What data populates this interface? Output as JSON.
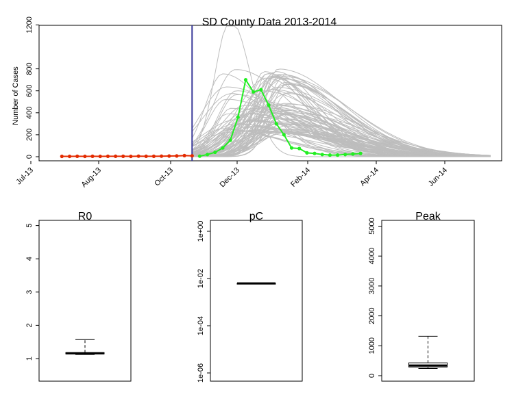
{
  "chart_data": [
    {
      "type": "line",
      "title": "SD County Data 2013-2014",
      "ylabel": "Number of Cases",
      "xlabel": "",
      "x_tick_labels": [
        "Jul-13",
        "Aug-13",
        "Oct-13",
        "Dec-13",
        "Feb-14",
        "Apr-14",
        "Jun-14"
      ],
      "y_ticks": [
        0,
        200,
        400,
        600,
        800,
        1200
      ],
      "ylim": [
        0,
        1250
      ],
      "grid": false,
      "week_index_range": [
        0,
        58
      ],
      "vertical_line_week": 19,
      "colors": {
        "observed_fit": "#e32b00",
        "observed_forecast": "#22ee22",
        "simulations": "#bdbdbd",
        "cutoff_line": "#3a3a9a"
      },
      "series": [
        {
          "values_week_start": 2,
          "values": [
            3,
            3,
            4,
            3,
            4,
            3,
            4,
            4,
            4,
            3,
            5,
            4,
            4,
            5,
            6,
            7,
            10,
            8
          ]
        },
        {
          "values_week_start": 20,
          "values": [
            5,
            20,
            40,
            80,
            150,
            360,
            700,
            590,
            610,
            470,
            300,
            200,
            80,
            75,
            35,
            30,
            20,
            15,
            15,
            20,
            25,
            30
          ]
        }
      ],
      "simulation_envelope": {
        "count": 90,
        "peak_week_range": [
          23,
          32
        ],
        "peak_value_range": [
          220,
          820
        ],
        "outlier_peak": {
          "week": 24,
          "value": 1250
        }
      }
    },
    {
      "type": "box",
      "title": "R0",
      "y_ticks": [
        1,
        2,
        3,
        4,
        5
      ],
      "ylim": [
        0.35,
        5.2
      ],
      "box": {
        "whisker_low": 1.12,
        "q1": 1.14,
        "median": 1.16,
        "q3": 1.18,
        "whisker_high": 1.57
      }
    },
    {
      "type": "box",
      "title": "pC",
      "y_ticks": [
        "1e-06",
        "1e-04",
        "1e-02",
        "1e+00"
      ],
      "scale": "log10",
      "ylim": [
        1e-06,
        1.4
      ],
      "box": {
        "whisker_low": 0.0062,
        "q1": 0.0062,
        "median": 0.0062,
        "q3": 0.0062,
        "whisker_high": 0.0062
      }
    },
    {
      "type": "box",
      "title": "Peak",
      "y_ticks": [
        0,
        1000,
        2000,
        3000,
        4000,
        5000
      ],
      "ylim": [
        -150,
        5250
      ],
      "box": {
        "whisker_low": 240,
        "q1": 290,
        "median": 340,
        "q3": 430,
        "whisker_high": 1320
      }
    }
  ]
}
